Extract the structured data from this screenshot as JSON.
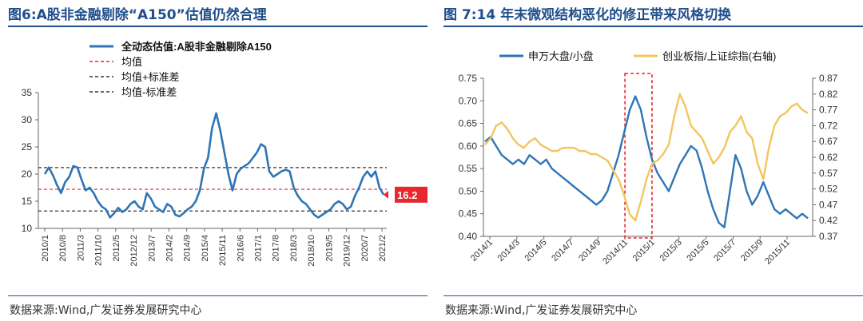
{
  "left": {
    "title": "图6:A股非金融剔除“A150”估值仍然合理",
    "source": "数据来源:Wind,广发证券发展研究中心",
    "chart_data": {
      "type": "line",
      "ylim": [
        10,
        35
      ],
      "yticks": [
        "10",
        "15",
        "20",
        "25",
        "30",
        "35"
      ],
      "xticks": [
        "2010/1",
        "2010/8",
        "2011/3",
        "2011/10",
        "2012/5",
        "2012/12",
        "2013/7",
        "2014/2",
        "2014/9",
        "2015/4",
        "2015/11",
        "2016/6",
        "2017/1",
        "2017/8",
        "2018/3",
        "2018/10",
        "2019/5",
        "2019/12",
        "2020/7",
        "2021/2"
      ],
      "legend": [
        "全动态估值:A股非金融剔除A150",
        "均值",
        "均值+标准差",
        "均值-标准差"
      ],
      "mean": 17.2,
      "upper": 21.2,
      "lower": 13.2,
      "end_label": "16.2",
      "colors": {
        "series": "#2e75b6",
        "mean": "#e8262d",
        "band": "#333333",
        "label_bg": "#e8262d"
      },
      "series": [
        {
          "name": "全动态估值:A股非金融剔除A150",
          "x_start": "2010/1",
          "x_end": "2021/2",
          "values": [
            20.0,
            21.2,
            19.8,
            18.0,
            16.5,
            18.5,
            19.5,
            21.5,
            21.2,
            19.0,
            17.0,
            17.5,
            16.5,
            15.0,
            14.0,
            13.5,
            12.0,
            12.8,
            13.8,
            13.0,
            13.5,
            14.5,
            15.0,
            14.0,
            13.5,
            16.5,
            15.5,
            14.0,
            13.5,
            13.0,
            14.5,
            14.0,
            12.5,
            12.2,
            12.8,
            13.5,
            14.0,
            15.0,
            17.0,
            21.0,
            23.0,
            28.5,
            31.2,
            28.0,
            24.0,
            20.0,
            17.0,
            20.0,
            21.0,
            21.5,
            22.0,
            23.0,
            24.0,
            25.5,
            25.0,
            20.5,
            19.5,
            20.0,
            20.5,
            20.8,
            20.5,
            17.5,
            16.0,
            15.0,
            14.5,
            13.5,
            12.5,
            12.0,
            12.5,
            13.0,
            13.5,
            14.5,
            15.0,
            14.5,
            13.5,
            14.0,
            16.0,
            17.5,
            19.5,
            20.5,
            19.5,
            20.5,
            17.5,
            16.2
          ]
        }
      ]
    }
  },
  "right": {
    "title": "图 7:14 年末微观结构恶化的修正带来风格切换",
    "source": "数据来源:Wind,广发证券发展研究中心",
    "chart_data": {
      "type": "line",
      "ylim_left": [
        0.4,
        0.75
      ],
      "yticks_left": [
        "0.40",
        "0.45",
        "0.50",
        "0.55",
        "0.60",
        "0.65",
        "0.70",
        "0.75"
      ],
      "ylim_right": [
        0.37,
        0.87
      ],
      "yticks_right": [
        "0.37",
        "0.42",
        "0.47",
        "0.52",
        "0.57",
        "0.62",
        "0.67",
        "0.72",
        "0.77",
        "0.82",
        "0.87"
      ],
      "xticks": [
        "2014/1",
        "2014/3",
        "2014/5",
        "2014/7",
        "2014/9",
        "2014/11",
        "2015/1",
        "2015/3",
        "2015/5",
        "2015/7",
        "2015/9",
        "2015/11"
      ],
      "legend": [
        "申万大盘/小盘",
        "创业板指/上证综指(右轴)"
      ],
      "colors": {
        "s1": "#2e75b6",
        "s2": "#f2c65f",
        "box": "#e8262d"
      },
      "highlight": {
        "x_from": "2014/11",
        "x_to": "2015/1"
      },
      "series": [
        {
          "name": "申万大盘/小盘",
          "axis": "left",
          "values": [
            0.61,
            0.62,
            0.6,
            0.58,
            0.57,
            0.56,
            0.57,
            0.56,
            0.58,
            0.57,
            0.56,
            0.57,
            0.55,
            0.54,
            0.53,
            0.52,
            0.51,
            0.5,
            0.49,
            0.48,
            0.47,
            0.48,
            0.5,
            0.54,
            0.58,
            0.63,
            0.68,
            0.71,
            0.68,
            0.62,
            0.57,
            0.54,
            0.52,
            0.5,
            0.53,
            0.56,
            0.58,
            0.6,
            0.59,
            0.55,
            0.5,
            0.46,
            0.43,
            0.42,
            0.5,
            0.58,
            0.55,
            0.5,
            0.47,
            0.49,
            0.52,
            0.49,
            0.46,
            0.45,
            0.46,
            0.45,
            0.44,
            0.45,
            0.44
          ]
        },
        {
          "name": "创业板指/上证综指(右轴)",
          "axis": "right",
          "values": [
            0.66,
            0.68,
            0.72,
            0.73,
            0.71,
            0.68,
            0.66,
            0.65,
            0.67,
            0.68,
            0.66,
            0.65,
            0.64,
            0.64,
            0.65,
            0.65,
            0.65,
            0.64,
            0.64,
            0.63,
            0.63,
            0.62,
            0.61,
            0.58,
            0.55,
            0.5,
            0.44,
            0.42,
            0.48,
            0.55,
            0.6,
            0.61,
            0.63,
            0.66,
            0.75,
            0.82,
            0.78,
            0.72,
            0.7,
            0.68,
            0.64,
            0.6,
            0.62,
            0.65,
            0.7,
            0.72,
            0.75,
            0.7,
            0.68,
            0.6,
            0.55,
            0.65,
            0.72,
            0.75,
            0.76,
            0.78,
            0.79,
            0.77,
            0.76
          ]
        }
      ]
    }
  }
}
